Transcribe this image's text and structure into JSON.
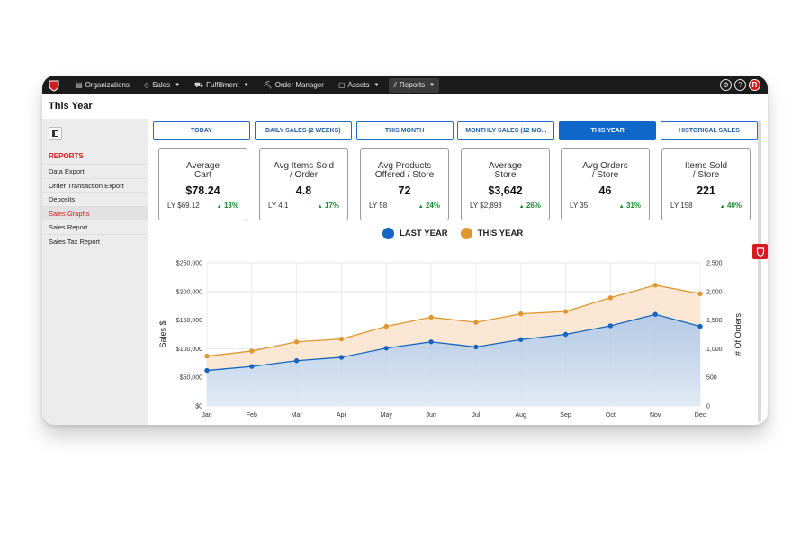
{
  "nav": {
    "items": [
      {
        "label": "Organizations",
        "icon": "building-icon",
        "caret": false
      },
      {
        "label": "Sales",
        "icon": "tag-icon",
        "caret": true
      },
      {
        "label": "Fulfillment",
        "icon": "truck-icon",
        "caret": true
      },
      {
        "label": "Order Manager",
        "icon": "cart-icon",
        "caret": false
      },
      {
        "label": "Assets",
        "icon": "clipboard-icon",
        "caret": true
      },
      {
        "label": "Reports",
        "icon": "chart-icon",
        "caret": true
      }
    ],
    "user_initial": "R",
    "help": "?"
  },
  "page": {
    "title": "This Year"
  },
  "sidebar": {
    "heading": "REPORTS",
    "items": [
      "Data Export",
      "Order Transaction Export",
      "Deposits",
      "Sales Graphs",
      "Sales Report",
      "Sales Tax Report"
    ]
  },
  "tabs": [
    "TODAY",
    "DAILY SALES (2 WEEKS)",
    "THIS MONTH",
    "MONTHLY SALES (12 MO...",
    "THIS YEAR",
    "HISTORICAL SALES"
  ],
  "cards": [
    {
      "title1": "Average",
      "title2": "Cart",
      "value": "$78.24",
      "ly": "LY $69.12",
      "pct": "13%"
    },
    {
      "title1": "Avg Items Sold",
      "title2": "/ Order",
      "value": "4.8",
      "ly": "LY 4.1",
      "pct": "17%"
    },
    {
      "title1": "Avg Products",
      "title2": "Offered / Store",
      "value": "72",
      "ly": "LY 58",
      "pct": "24%"
    },
    {
      "title1": "Average",
      "title2": "Store",
      "value": "$3,642",
      "ly": "LY $2,893",
      "pct": "26%"
    },
    {
      "title1": "Avg Orders",
      "title2": "/ Store",
      "value": "46",
      "ly": "LY 35",
      "pct": "31%"
    },
    {
      "title1": "Items Sold",
      "title2": "/ Store",
      "value": "221",
      "ly": "LY 158",
      "pct": "40%"
    }
  ],
  "colors": {
    "last_year": "#1565c0",
    "this_year": "#e0962f",
    "accent": "#d71920",
    "tab_active": "#0e67c9"
  },
  "chart_data": {
    "type": "area",
    "categories": [
      "Jan",
      "Feb",
      "Mar",
      "Apr",
      "May",
      "Jun",
      "Jul",
      "Aug",
      "Sep",
      "Oct",
      "Nov",
      "Dec"
    ],
    "series": [
      {
        "name": "LAST YEAR",
        "values": [
          62000,
          69000,
          79000,
          85000,
          101000,
          112000,
          103000,
          116000,
          125000,
          140000,
          160000,
          139000
        ]
      },
      {
        "name": "THIS YEAR",
        "values": [
          87000,
          96000,
          112000,
          117000,
          139000,
          155000,
          146000,
          161000,
          165000,
          189000,
          211000,
          196000
        ]
      }
    ],
    "ylabel": "Sales $",
    "y2label": "# Of Orders",
    "ylim": [
      0,
      250000
    ],
    "y2lim": [
      0,
      2500
    ],
    "yticks": [
      "$0",
      "$50,000",
      "$100,000",
      "$150,000",
      "$200,000",
      "$250,000"
    ],
    "y2ticks": [
      "0",
      "500",
      "1,000",
      "1,500",
      "2,000",
      "2,500"
    ],
    "grid": true,
    "legend": "top-center"
  }
}
